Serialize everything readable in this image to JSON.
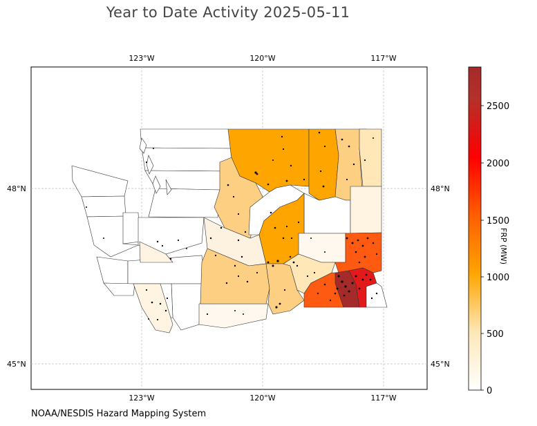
{
  "title": "Year to Date Activity 2025-05-11",
  "footer": "NOAA/NESDIS Hazard Mapping System",
  "colorbar": {
    "label": "FRP (MW)",
    "ticks": [
      "0",
      "500",
      "1000",
      "1500",
      "2000",
      "2500"
    ],
    "colors": [
      "#ffffff",
      "#fde7b8",
      "#ffa500",
      "#ff5a00",
      "#ff0000",
      "#a52a2a"
    ]
  },
  "axes": {
    "lon_labels": [
      "123°W",
      "120°W",
      "117°W"
    ],
    "lat_labels": [
      "48°N",
      "45°N"
    ]
  },
  "colors": {
    "light": "#fff4e2",
    "pale": "#ffe7b8",
    "tan": "#fdcf83",
    "orange": "#ffa500",
    "deep_orange": "#ff5a11",
    "red": "#e31a1c",
    "brown": "#a52a2a"
  }
}
